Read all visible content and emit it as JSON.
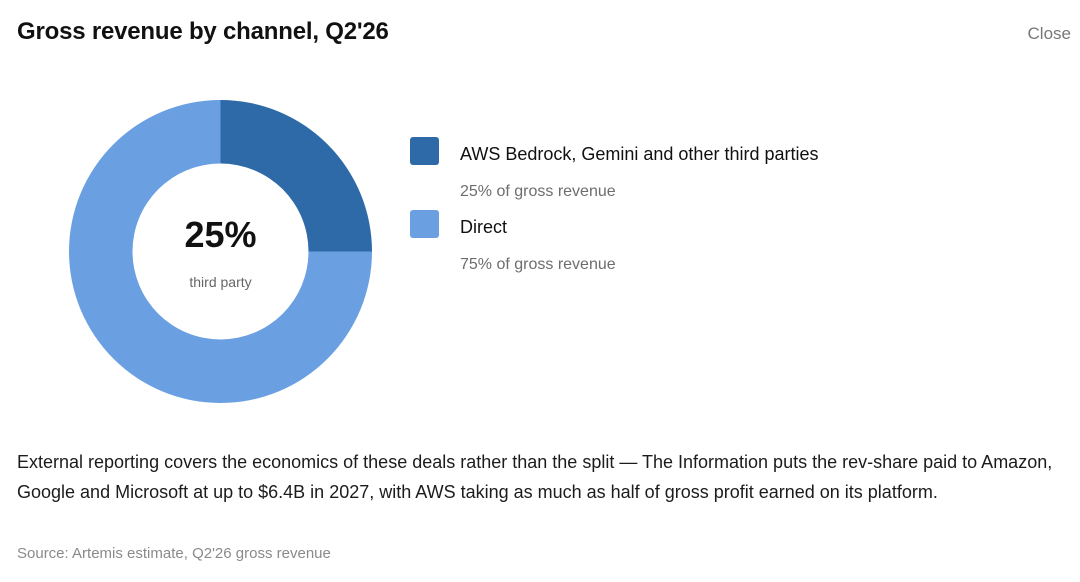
{
  "header": {
    "title": "Gross revenue by channel, Q2'26",
    "close_label": "Close"
  },
  "chart_data": {
    "type": "pie",
    "variant": "donut",
    "title": "Gross revenue by channel, Q2'26",
    "center_value": "25%",
    "center_label": "third party",
    "slices": [
      {
        "name": "AWS Bedrock, Gemini and other third parties",
        "value": 25,
        "color": "#2e6aa7",
        "caption": "25% of gross revenue"
      },
      {
        "name": "Direct",
        "value": 75,
        "color": "#6aa0e2",
        "caption": "75% of gross revenue"
      }
    ],
    "legend": "right"
  },
  "note": {
    "text": "External reporting covers the economics of these deals rather than the split — The Information puts the rev-share paid to Amazon, Google and Microsoft at up to $6.4B in 2027, with AWS taking as much as half of gross profit earned on its platform."
  },
  "source": {
    "text": "Source: Artemis estimate, Q2'26 gross revenue"
  }
}
